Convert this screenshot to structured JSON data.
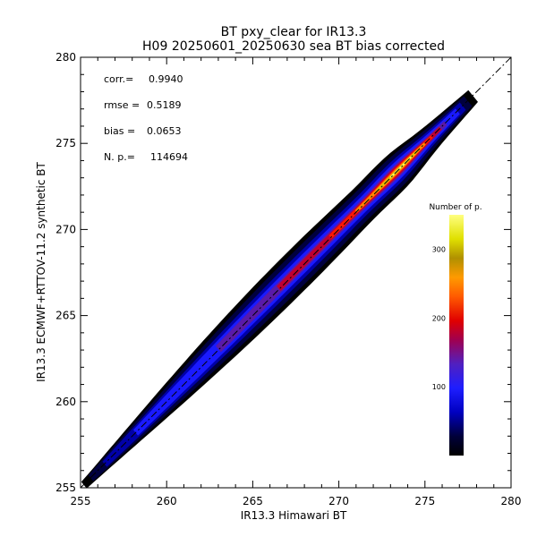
{
  "chart_data": {
    "type": "heatmap",
    "title": "BT pxy_clear for IR13.3",
    "subtitle": "H09 20250601_20250630 sea BT bias corrected",
    "xlabel": "IR13.3 Himawari BT",
    "ylabel": "IR13.3 ECMWF+RTTOV-11.2 synthetic BT",
    "xlim": [
      255,
      280
    ],
    "ylim": [
      255,
      280
    ],
    "xticks": [
      "255",
      "260",
      "265",
      "270",
      "275",
      "280"
    ],
    "yticks": [
      "255",
      "260",
      "265",
      "270",
      "275",
      "280"
    ],
    "grid": false,
    "reference_line": "y = x (dash-dot)",
    "stats": [
      {
        "label": "corr.=",
        "value": "0.9940"
      },
      {
        "label": "rmse =",
        "value": "0.5189"
      },
      {
        "label": "bias =",
        "value": "0.0653"
      },
      {
        "label": "N. p.=",
        "value": "114694"
      }
    ],
    "colorbar": {
      "title": "Number of p.",
      "range": [
        0,
        350
      ],
      "ticks": [
        "100",
        "200",
        "300"
      ],
      "placement": "right-inside"
    },
    "distribution": {
      "x_range": [
        255.2,
        277.8
      ],
      "core_peak_x": 273.5,
      "core_peak_value": 350,
      "colors": [
        "#000000",
        "#00007e",
        "#0000ff",
        "#8800aa",
        "#e10000",
        "#ff8800",
        "#ffd000",
        "#ffff66"
      ]
    }
  }
}
